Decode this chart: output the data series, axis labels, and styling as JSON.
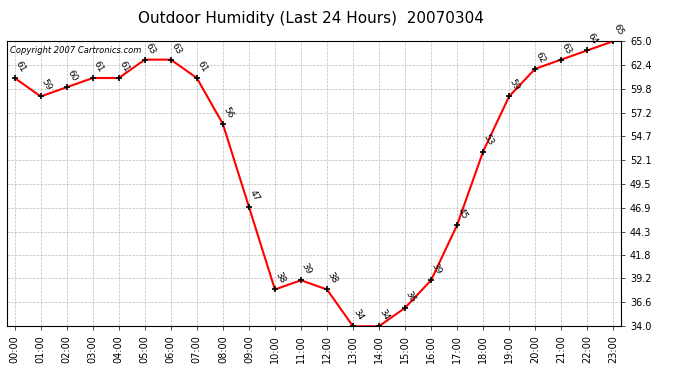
{
  "title": "Outdoor Humidity (Last 24 Hours)  20070304",
  "copyright_text": "Copyright 2007 Cartronics.com",
  "x_labels": [
    "00:00",
    "01:00",
    "02:00",
    "03:00",
    "04:00",
    "05:00",
    "06:00",
    "07:00",
    "08:00",
    "09:00",
    "10:00",
    "11:00",
    "12:00",
    "13:00",
    "14:00",
    "15:00",
    "16:00",
    "17:00",
    "18:00",
    "19:00",
    "20:00",
    "21:00",
    "22:00",
    "23:00"
  ],
  "hours": [
    0,
    1,
    2,
    3,
    4,
    5,
    6,
    7,
    8,
    9,
    10,
    11,
    12,
    13,
    14,
    15,
    16,
    17,
    18,
    19,
    20,
    21,
    22,
    23
  ],
  "values": [
    61,
    59,
    60,
    61,
    61,
    63,
    63,
    61,
    56,
    47,
    38,
    39,
    38,
    34,
    34,
    36,
    39,
    45,
    53,
    59,
    62,
    63,
    64,
    65
  ],
  "ylim": [
    34.0,
    65.0
  ],
  "yticks": [
    34.0,
    36.6,
    39.2,
    41.8,
    44.3,
    46.9,
    49.5,
    52.1,
    54.7,
    57.2,
    59.8,
    62.4,
    65.0
  ],
  "line_color": "red",
  "marker_color": "black",
  "bg_color": "white",
  "grid_color": "#bbbbbb",
  "title_fontsize": 11,
  "label_fontsize": 6.5,
  "tick_fontsize": 7,
  "copyright_fontsize": 6
}
